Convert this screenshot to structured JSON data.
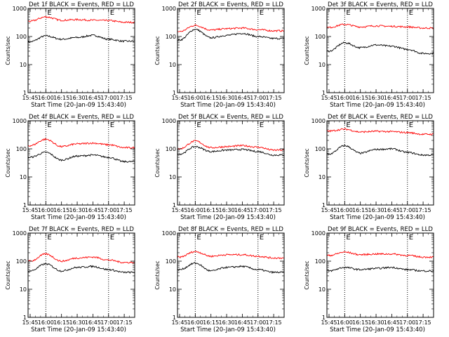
{
  "figure": {
    "start_time_label": "Start Time (20-Jan-09 15:43:40)",
    "y_axis_label": "Counts/sec",
    "x_tick_labels": [
      "15:45",
      "16:00",
      "16:15",
      "16:30",
      "16:45",
      "17:00",
      "17:15"
    ],
    "y_tick_labels": [
      "1",
      "10",
      "100",
      "1000"
    ],
    "marker_letters": [
      "E",
      "E"
    ]
  },
  "colors": {
    "events": "#000000",
    "lld": "#ff0000",
    "axes": "#000000"
  },
  "chart_data": [
    {
      "type": "line",
      "title": "Det 1f BLACK = Events, RED = LLD",
      "ylabel": "Counts/sec",
      "xlabel": "Start Time (20-Jan-09 15:43:40)",
      "y_scale": "log",
      "ylim": [
        1,
        1000
      ],
      "x": [
        "15:45",
        "16:00",
        "16:15",
        "16:30",
        "16:45",
        "17:00",
        "17:15"
      ],
      "series": [
        {
          "name": "Events",
          "color": "black",
          "values": [
            65,
            105,
            80,
            92,
            110,
            80,
            68
          ]
        },
        {
          "name": "LLD",
          "color": "red",
          "values": [
            350,
            500,
            380,
            400,
            380,
            370,
            320
          ]
        }
      ]
    },
    {
      "type": "line",
      "title": "Det 2f BLACK = Events, RED = LLD",
      "ylabel": "Counts/sec",
      "xlabel": "Start Time (20-Jan-09 15:43:40)",
      "y_scale": "log",
      "ylim": [
        1,
        1000
      ],
      "x": [
        "15:45",
        "16:00",
        "16:15",
        "16:30",
        "16:45",
        "17:00",
        "17:15"
      ],
      "series": [
        {
          "name": "Events",
          "color": "black",
          "values": [
            75,
            180,
            90,
            110,
            130,
            100,
            85
          ]
        },
        {
          "name": "LLD",
          "color": "red",
          "values": [
            150,
            250,
            170,
            190,
            200,
            175,
            160
          ]
        }
      ]
    },
    {
      "type": "line",
      "title": "Det 3f BLACK = Events, RED = LLD",
      "ylabel": "Counts/sec",
      "xlabel": "Start Time (20-Jan-09 15:43:40)",
      "y_scale": "log",
      "ylim": [
        1,
        1000
      ],
      "x": [
        "15:45",
        "16:00",
        "16:15",
        "16:30",
        "16:45",
        "17:00",
        "17:15"
      ],
      "series": [
        {
          "name": "Events",
          "color": "black",
          "values": [
            30,
            60,
            40,
            50,
            45,
            35,
            25
          ]
        },
        {
          "name": "LLD",
          "color": "red",
          "values": [
            210,
            270,
            220,
            240,
            230,
            220,
            200
          ]
        }
      ]
    },
    {
      "type": "line",
      "title": "Det 4f BLACK = Events, RED = LLD",
      "ylabel": "Counts/sec",
      "xlabel": "Start Time (20-Jan-09 15:43:40)",
      "y_scale": "log",
      "ylim": [
        1,
        1000
      ],
      "x": [
        "15:45",
        "16:00",
        "16:15",
        "16:30",
        "16:45",
        "17:00",
        "17:15"
      ],
      "series": [
        {
          "name": "Events",
          "color": "black",
          "values": [
            50,
            75,
            40,
            55,
            60,
            50,
            35
          ]
        },
        {
          "name": "LLD",
          "color": "red",
          "values": [
            130,
            220,
            120,
            150,
            160,
            140,
            110
          ]
        }
      ]
    },
    {
      "type": "line",
      "title": "Det 5f BLACK = Events, RED = LLD",
      "ylabel": "Counts/sec",
      "xlabel": "Start Time (20-Jan-09 15:43:40)",
      "y_scale": "log",
      "ylim": [
        1,
        1000
      ],
      "x": [
        "15:45",
        "16:00",
        "16:15",
        "16:30",
        "16:45",
        "17:00",
        "17:15"
      ],
      "series": [
        {
          "name": "Events",
          "color": "black",
          "values": [
            65,
            120,
            80,
            90,
            95,
            80,
            60
          ]
        },
        {
          "name": "LLD",
          "color": "red",
          "values": [
            100,
            190,
            110,
            120,
            130,
            115,
            90
          ]
        }
      ]
    },
    {
      "type": "line",
      "title": "Det 6f BLACK = Events, RED = LLD",
      "ylabel": "Counts/sec",
      "xlabel": "Start Time (20-Jan-09 15:43:40)",
      "y_scale": "log",
      "ylim": [
        1,
        1000
      ],
      "x": [
        "15:45",
        "16:00",
        "16:15",
        "16:30",
        "16:45",
        "17:00",
        "17:15"
      ],
      "series": [
        {
          "name": "Events",
          "color": "black",
          "values": [
            65,
            130,
            70,
            95,
            100,
            75,
            60
          ]
        },
        {
          "name": "LLD",
          "color": "red",
          "values": [
            430,
            500,
            400,
            420,
            410,
            380,
            330
          ]
        }
      ]
    },
    {
      "type": "line",
      "title": "Det 7f BLACK = Events, RED = LLD",
      "ylabel": "Counts/sec",
      "xlabel": "Start Time (20-Jan-09 15:43:40)",
      "y_scale": "log",
      "ylim": [
        1,
        1000
      ],
      "x": [
        "15:45",
        "16:00",
        "16:15",
        "16:30",
        "16:45",
        "17:00",
        "17:15"
      ],
      "series": [
        {
          "name": "Events",
          "color": "black",
          "values": [
            45,
            80,
            45,
            60,
            65,
            50,
            40
          ]
        },
        {
          "name": "LLD",
          "color": "red",
          "values": [
            100,
            180,
            100,
            130,
            140,
            110,
            90
          ]
        }
      ]
    },
    {
      "type": "line",
      "title": "Det 8f BLACK = Events, RED = LLD",
      "ylabel": "Counts/sec",
      "xlabel": "Start Time (20-Jan-09 15:43:40)",
      "y_scale": "log",
      "ylim": [
        1,
        1000
      ],
      "x": [
        "15:45",
        "16:00",
        "16:15",
        "16:30",
        "16:45",
        "17:00",
        "17:15"
      ],
      "series": [
        {
          "name": "Events",
          "color": "black",
          "values": [
            50,
            85,
            45,
            60,
            65,
            50,
            40
          ]
        },
        {
          "name": "LLD",
          "color": "red",
          "values": [
            140,
            220,
            150,
            170,
            170,
            150,
            130
          ]
        }
      ]
    },
    {
      "type": "line",
      "title": "Det 9f BLACK = Events, RED = LLD",
      "ylabel": "Counts/sec",
      "xlabel": "Start Time (20-Jan-09 15:43:40)",
      "y_scale": "log",
      "ylim": [
        1,
        1000
      ],
      "x": [
        "15:45",
        "16:00",
        "16:15",
        "16:30",
        "16:45",
        "17:00",
        "17:15"
      ],
      "series": [
        {
          "name": "Events",
          "color": "black",
          "values": [
            45,
            60,
            50,
            55,
            60,
            50,
            45
          ]
        },
        {
          "name": "LLD",
          "color": "red",
          "values": [
            160,
            210,
            170,
            180,
            180,
            160,
            140
          ]
        }
      ]
    }
  ]
}
